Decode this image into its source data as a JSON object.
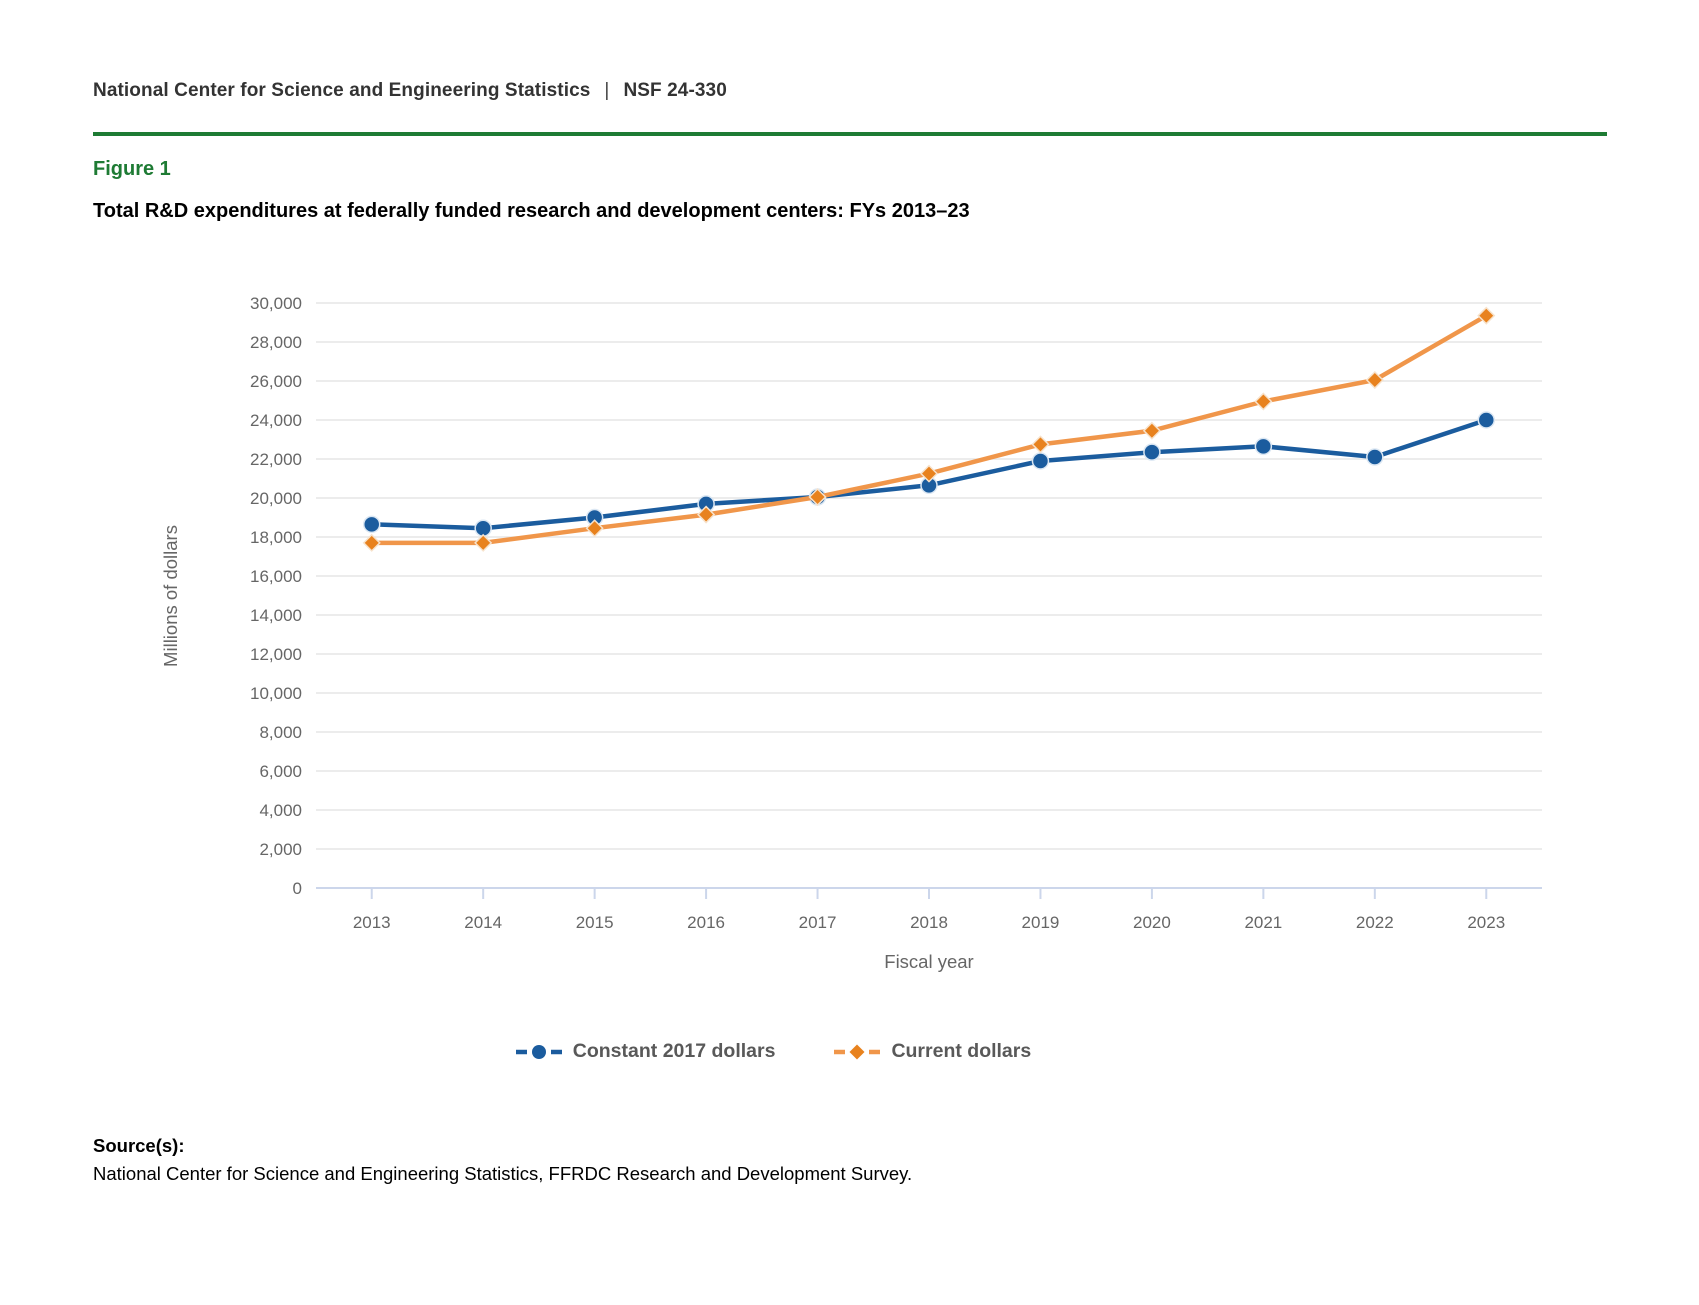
{
  "header": {
    "org": "National Center for Science and Engineering Statistics",
    "separator": "|",
    "report_number": "NSF 24-330"
  },
  "figure": {
    "label": "Figure 1",
    "title": "Total R&D expenditures at federally funded research and development centers: FYs 2013–23"
  },
  "colors": {
    "accent_green": "#1E7B34",
    "grid": "#E6E6E6",
    "axis": "#CCD6EB",
    "axis_label_gray": "#666666",
    "legend_text_gray": "#595959",
    "header_text": "#333333"
  },
  "chart_data": {
    "type": "line",
    "title": "Total R&D expenditures at federally funded research and development centers: FYs 2013–23",
    "categories": [
      "2013",
      "2014",
      "2015",
      "2016",
      "2017",
      "2018",
      "2019",
      "2020",
      "2021",
      "2022",
      "2023"
    ],
    "series": [
      {
        "name": "Constant 2017 dollars",
        "marker": "circle",
        "line_color": "#1B5C9E",
        "marker_color": "#1B5C9E",
        "values": [
          18650,
          18450,
          19000,
          19700,
          20050,
          20650,
          21900,
          22350,
          22650,
          22100,
          24000
        ]
      },
      {
        "name": "Current dollars",
        "marker": "diamond",
        "line_color": "#F0964A",
        "marker_color": "#E8821E",
        "values": [
          17700,
          17700,
          18450,
          19150,
          20050,
          21250,
          22750,
          23450,
          24950,
          26050,
          29350
        ]
      }
    ],
    "xlabel": "Fiscal year",
    "ylabel": "Millions of dollars",
    "ylim": [
      0,
      30000
    ],
    "ytick_step": 2000,
    "grid": "horizontal",
    "legend_position": "bottom"
  },
  "source": {
    "heading": "Source(s):",
    "text": "National Center for Science and Engineering Statistics, FFRDC Research and Development Survey."
  }
}
